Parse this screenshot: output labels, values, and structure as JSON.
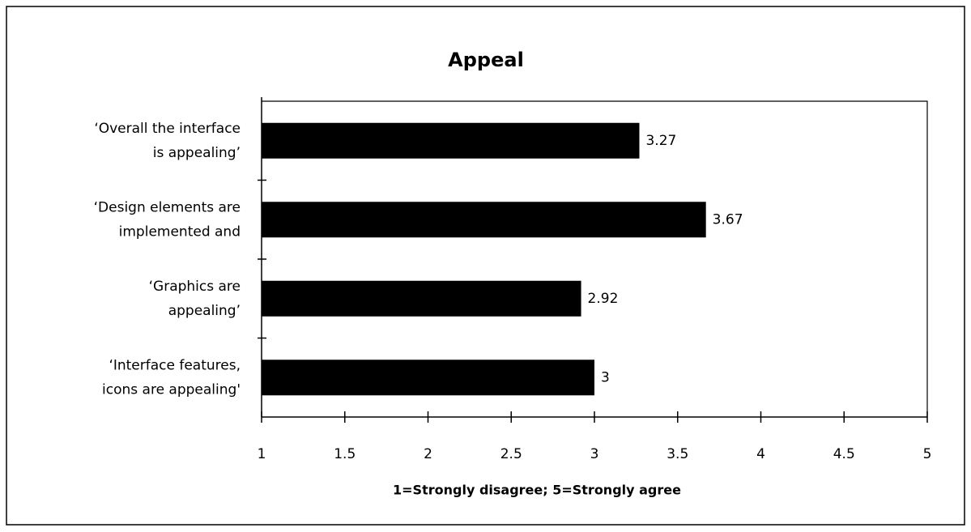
{
  "chart_data": {
    "type": "bar",
    "orientation": "horizontal",
    "title": "Appeal",
    "categories": [
      [
        "‘Overall the interface",
        "is appealing’"
      ],
      [
        "‘Design elements are",
        "implemented and"
      ],
      [
        "‘Graphics are",
        "appealing’"
      ],
      [
        "‘Interface features,",
        "icons are appealing'"
      ]
    ],
    "values": [
      3.27,
      3.67,
      2.92,
      3
    ],
    "color": "#000000",
    "xlabel": "1=Strongly disagree; 5=Strongly agree",
    "xlim": [
      1,
      5
    ],
    "xticks": [
      1,
      1.5,
      2,
      2.5,
      3,
      3.5,
      4,
      4.5,
      5
    ],
    "grid": false
  }
}
